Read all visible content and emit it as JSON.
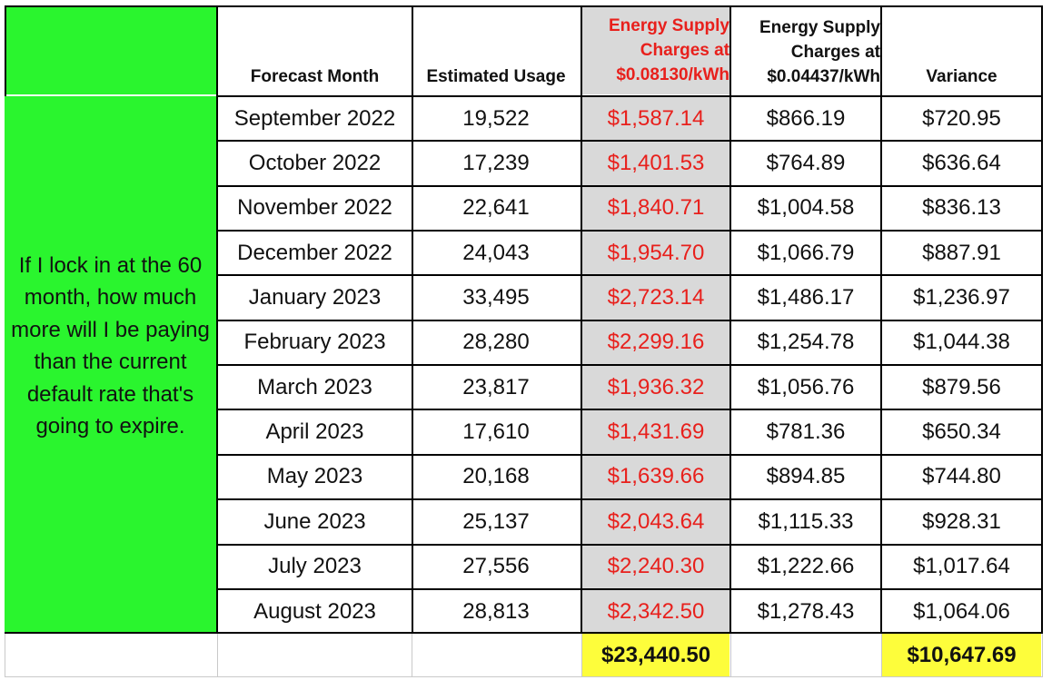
{
  "table": {
    "headers": {
      "month": "Forecast Month",
      "usage": "Estimated Usage",
      "rate_a": [
        "Energy Supply",
        "Charges at",
        "$0.08130/kWh"
      ],
      "rate_b": [
        "Energy Supply",
        "Charges at",
        "$0.04437/kWh"
      ],
      "variance": "Variance"
    },
    "note": "If I lock in at the 60 month, how much more will I be paying than the current default rate that's going to expire.",
    "rows": [
      {
        "month": "September 2022",
        "usage": "19,522",
        "a": "$1,587.14",
        "b": "$866.19",
        "variance": "$720.95"
      },
      {
        "month": "October 2022",
        "usage": "17,239",
        "a": "$1,401.53",
        "b": "$764.89",
        "variance": "$636.64"
      },
      {
        "month": "November 2022",
        "usage": "22,641",
        "a": "$1,840.71",
        "b": "$1,004.58",
        "variance": "$836.13"
      },
      {
        "month": "December 2022",
        "usage": "24,043",
        "a": "$1,954.70",
        "b": "$1,066.79",
        "variance": "$887.91"
      },
      {
        "month": "January 2023",
        "usage": "33,495",
        "a": "$2,723.14",
        "b": "$1,486.17",
        "variance": "$1,236.97"
      },
      {
        "month": "February 2023",
        "usage": "28,280",
        "a": "$2,299.16",
        "b": "$1,254.78",
        "variance": "$1,044.38"
      },
      {
        "month": "March 2023",
        "usage": "23,817",
        "a": "$1,936.32",
        "b": "$1,056.76",
        "variance": "$879.56"
      },
      {
        "month": "April 2023",
        "usage": "17,610",
        "a": "$1,431.69",
        "b": "$781.36",
        "variance": "$650.34"
      },
      {
        "month": "May 2023",
        "usage": "20,168",
        "a": "$1,639.66",
        "b": "$894.85",
        "variance": "$744.80"
      },
      {
        "month": "June 2023",
        "usage": "25,137",
        "a": "$2,043.64",
        "b": "$1,115.33",
        "variance": "$928.31"
      },
      {
        "month": "July 2023",
        "usage": "27,556",
        "a": "$2,240.30",
        "b": "$1,222.66",
        "variance": "$1,017.64"
      },
      {
        "month": "August 2023",
        "usage": "28,813",
        "a": "$2,342.50",
        "b": "$1,278.43",
        "variance": "$1,064.06"
      }
    ],
    "totals": {
      "a": "$23,440.50",
      "variance": "$10,647.69"
    }
  },
  "colors": {
    "note_fill": "#2af52e",
    "highlight_column_fill": "#d9d9d9",
    "highlight_text": "#e8201c",
    "total_fill": "#fdfd3b",
    "border": "#000000"
  }
}
